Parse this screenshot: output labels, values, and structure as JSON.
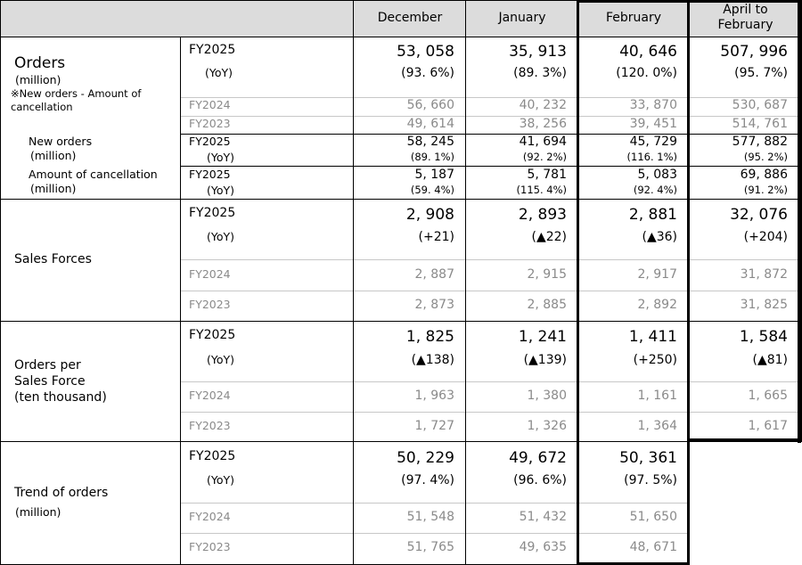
{
  "header": {
    "columns": [
      "December",
      "January",
      "February",
      "April to\nFebruary"
    ]
  },
  "orders": {
    "title": "Orders",
    "unit": "(million)",
    "note": "※New orders - Amount of\ncancellation",
    "fy2025": {
      "label": "FY2025",
      "values": [
        "53, 058",
        "35, 913",
        "40, 646",
        "507, 996"
      ]
    },
    "yoy": {
      "label": "(YoY)",
      "values": [
        "(93. 6%)",
        "(89. 3%)",
        "(120. 0%)",
        "(95. 7%)"
      ]
    },
    "fy2024": {
      "label": "FY2024",
      "values": [
        "56, 660",
        "40, 232",
        "33, 870",
        "530, 687"
      ]
    },
    "fy2023": {
      "label": "FY2023",
      "values": [
        "49, 614",
        "38, 256",
        "39, 451",
        "514, 761"
      ]
    }
  },
  "new_orders": {
    "title": "New orders",
    "unit": "(million)",
    "fy2025": {
      "label": "FY2025",
      "values": [
        "58, 245",
        "41, 694",
        "45, 729",
        "577, 882"
      ]
    },
    "yoy": {
      "label": "(YoY)",
      "values": [
        "(89. 1%)",
        "(92. 2%)",
        "(116. 1%)",
        "(95. 2%)"
      ]
    }
  },
  "cancellation": {
    "title": "Amount of cancellation",
    "unit": "(million)",
    "fy2025": {
      "label": "FY2025",
      "values": [
        "5, 187",
        "5, 781",
        "5, 083",
        "69, 886"
      ]
    },
    "yoy": {
      "label": "(YoY)",
      "values": [
        "(59. 4%)",
        "(115. 4%)",
        "(92. 4%)",
        "(91. 2%)"
      ]
    }
  },
  "sales_forces": {
    "title": "Sales Forces",
    "fy2025": {
      "label": "FY2025",
      "values": [
        "2, 908",
        "2, 893",
        "2, 881",
        "32, 076"
      ]
    },
    "yoy": {
      "label": "(YoY)",
      "values": [
        "(+21)",
        "(▲22)",
        "(▲36)",
        "(+204)"
      ]
    },
    "fy2024": {
      "label": "FY2024",
      "values": [
        "2, 887",
        "2, 915",
        "2, 917",
        "31, 872"
      ]
    },
    "fy2023": {
      "label": "FY2023",
      "values": [
        "2, 873",
        "2, 885",
        "2, 892",
        "31, 825"
      ]
    }
  },
  "orders_per_force": {
    "title": "Orders per\nSales Force\n(ten thousand)",
    "fy2025": {
      "label": "FY2025",
      "values": [
        "1, 825",
        "1, 241",
        "1, 411",
        "1, 584"
      ]
    },
    "yoy": {
      "label": "(YoY)",
      "values": [
        "(▲138)",
        "(▲139)",
        "(+250)",
        "(▲81)"
      ]
    },
    "fy2024": {
      "label": "FY2024",
      "values": [
        "1, 963",
        "1, 380",
        "1, 161",
        "1, 665"
      ]
    },
    "fy2023": {
      "label": "FY2023",
      "values": [
        "1, 727",
        "1, 326",
        "1, 364",
        "1, 617"
      ]
    }
  },
  "trend": {
    "title": "Trend of orders",
    "unit": "(million)",
    "fy2025": {
      "label": "FY2025",
      "values": [
        "50, 229",
        "49, 672",
        "50, 361"
      ]
    },
    "yoy": {
      "label": "(YoY)",
      "values": [
        "(97. 4%)",
        "(96. 6%)",
        "(97. 5%)"
      ]
    },
    "fy2024": {
      "label": "FY2024",
      "values": [
        "51, 548",
        "51, 432",
        "51, 650"
      ]
    },
    "fy2023": {
      "label": "FY2023",
      "values": [
        "51, 765",
        "49, 635",
        "48, 671"
      ]
    }
  }
}
